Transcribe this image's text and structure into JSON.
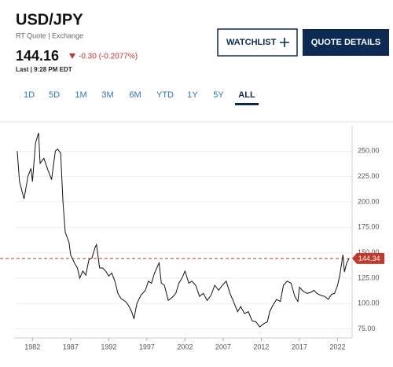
{
  "header": {
    "symbol": "USD/JPY",
    "source": "RT Quote | Exchange",
    "price": "144.16",
    "change": "-0.30 (-0.2077%)",
    "last": "Last | 9:28 PM EDT"
  },
  "buttons": {
    "watchlist": "WATCHLIST",
    "quote_details": "QUOTE DETAILS"
  },
  "tabs": {
    "items": [
      "1D",
      "5D",
      "1M",
      "3M",
      "6M",
      "YTD",
      "1Y",
      "5Y",
      "ALL"
    ],
    "active": "ALL"
  },
  "chart_data": {
    "type": "line",
    "color": "#111111",
    "x": [
      1980.0,
      1980.3,
      1980.9,
      1981.4,
      1981.8,
      1982.0,
      1982.4,
      1982.8,
      1983.0,
      1983.5,
      1984.0,
      1984.5,
      1985.0,
      1985.3,
      1985.7,
      1986.0,
      1986.3,
      1986.8,
      1987.0,
      1987.5,
      1987.9,
      1988.2,
      1988.6,
      1989.0,
      1989.4,
      1989.8,
      1990.2,
      1990.4,
      1990.8,
      1991.2,
      1991.6,
      1992.0,
      1992.4,
      1992.8,
      1993.2,
      1993.6,
      1994.2,
      1994.6,
      1995.0,
      1995.3,
      1995.7,
      1996.2,
      1996.8,
      1997.2,
      1997.6,
      1998.0,
      1998.6,
      1998.9,
      1999.3,
      1999.8,
      2000.3,
      2000.8,
      2001.2,
      2001.6,
      2002.0,
      2002.5,
      2002.9,
      2003.4,
      2003.9,
      2004.4,
      2004.9,
      2005.4,
      2005.9,
      2006.4,
      2006.9,
      2007.4,
      2007.9,
      2008.3,
      2008.9,
      2009.3,
      2009.8,
      2010.3,
      2010.8,
      2011.3,
      2011.8,
      2012.3,
      2012.8,
      2013.1,
      2013.5,
      2014.0,
      2014.5,
      2014.9,
      2015.4,
      2015.9,
      2016.4,
      2016.8,
      2017.0,
      2017.5,
      2018.0,
      2018.5,
      2018.9,
      2019.3,
      2019.8,
      2020.3,
      2020.8,
      2021.2,
      2021.6,
      2022.0,
      2022.3,
      2022.7,
      2022.9,
      2023.2,
      2023.5
    ],
    "values": [
      250,
      220,
      203,
      225,
      233,
      220,
      258,
      268,
      238,
      243,
      232,
      222,
      250,
      252,
      248,
      200,
      170,
      160,
      148,
      140,
      135,
      125,
      132,
      128,
      143,
      145,
      155,
      158,
      135,
      135,
      132,
      127,
      130,
      122,
      110,
      105,
      102,
      98,
      92,
      85,
      100,
      108,
      113,
      122,
      120,
      130,
      140,
      120,
      118,
      103,
      106,
      110,
      120,
      125,
      132,
      120,
      122,
      118,
      107,
      110,
      103,
      108,
      118,
      113,
      118,
      122,
      110,
      103,
      92,
      97,
      90,
      92,
      83,
      82,
      77,
      80,
      82,
      92,
      98,
      104,
      102,
      118,
      122,
      120,
      107,
      102,
      116,
      112,
      110,
      111,
      113,
      110,
      108,
      107,
      104,
      109,
      110,
      118,
      128,
      148,
      131,
      140,
      144
    ],
    "xlim": [
      1979.6,
      2023.6
    ],
    "ylim": [
      70,
      275
    ],
    "xticks": [
      1982,
      1987,
      1992,
      1997,
      2002,
      2007,
      2012,
      2017,
      2022
    ],
    "yticks": [
      {
        "value": 75,
        "label": "75.00"
      },
      {
        "value": 100,
        "label": "100.00"
      },
      {
        "value": 125,
        "label": "125.00"
      },
      {
        "value": 150,
        "label": "150.00"
      },
      {
        "value": 175,
        "label": "175.00"
      },
      {
        "value": 200,
        "label": "200.00"
      },
      {
        "value": 225,
        "label": "225.00"
      },
      {
        "value": 250,
        "label": "250.00"
      }
    ],
    "grid": true,
    "reference_line": {
      "value": 144.34,
      "color": "#c0392b"
    }
  }
}
